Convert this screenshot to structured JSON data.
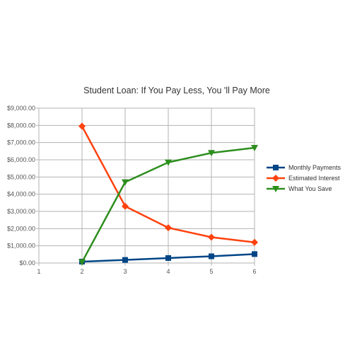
{
  "chart_data": {
    "type": "line",
    "title": "Student Loan: If You Pay Less, You 'll Pay More",
    "xlabel": "",
    "ylabel": "",
    "x": [
      1,
      2,
      3,
      4,
      5,
      6
    ],
    "x_tick_labels": [
      "1",
      "2",
      "3",
      "4",
      "5",
      "6"
    ],
    "xlim": [
      1,
      6
    ],
    "ylim": [
      0,
      9000
    ],
    "y_tick_values": [
      0,
      1000,
      2000,
      3000,
      4000,
      5000,
      6000,
      7000,
      8000,
      9000
    ],
    "y_tick_labels": [
      "$0.00",
      "$1,000.00",
      "$2,000.00",
      "$3,000.00",
      "$4,000.00",
      "$5,000.00",
      "$6,000.00",
      "$7,000.00",
      "$8,000.00",
      "$9,000.00"
    ],
    "grid": true,
    "legend_position": "right",
    "series": [
      {
        "name": "Monthly Payments",
        "color": "#004586",
        "marker": "square",
        "x": [
          2,
          3,
          4,
          5,
          6
        ],
        "values": [
          80,
          180,
          290,
          390,
          520
        ]
      },
      {
        "name": "Estimated Interest",
        "color": "#ff420e",
        "marker": "diamond",
        "x": [
          2,
          3,
          4,
          5,
          6
        ],
        "values": [
          7950,
          3300,
          2050,
          1500,
          1200
        ]
      },
      {
        "name": "What You Save",
        "color": "#2d8e1e",
        "marker": "triangle-down",
        "x": [
          2,
          3,
          4,
          5,
          6
        ],
        "values": [
          50,
          4700,
          5850,
          6400,
          6700
        ]
      }
    ]
  }
}
